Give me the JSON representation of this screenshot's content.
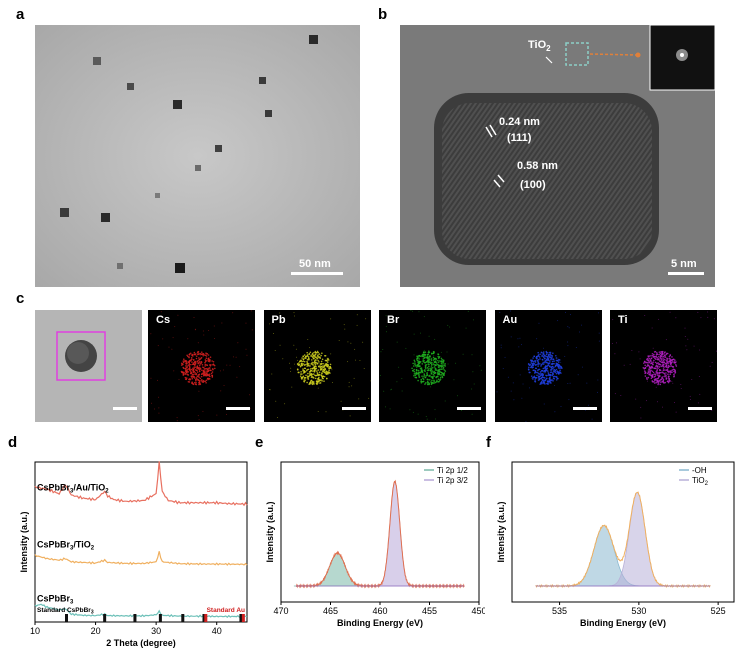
{
  "panels": {
    "a": {
      "label": "a",
      "scale": "50 nm"
    },
    "b": {
      "label": "b",
      "scale": "5 nm",
      "tio2": "TiO",
      "tio2_sub": "2",
      "d1": "0.24 nm",
      "hkl1": "(111)",
      "d2": "0.58 nm",
      "hkl2": "(100)"
    },
    "c": {
      "label": "c",
      "maps": [
        {
          "name": "Cs",
          "color": "#d42020"
        },
        {
          "name": "Pb",
          "color": "#cfd020"
        },
        {
          "name": "Br",
          "color": "#20b020"
        },
        {
          "name": "Au",
          "color": "#2040e0"
        },
        {
          "name": "Ti",
          "color": "#b020c0"
        }
      ]
    },
    "d": {
      "label": "d"
    },
    "e": {
      "label": "e"
    },
    "f": {
      "label": "f"
    }
  },
  "chart_data": [
    {
      "panel": "d",
      "type": "line",
      "xlabel": "2 Theta (degree)",
      "ylabel": "Intensity (a.u.)",
      "xlim": [
        10,
        45
      ],
      "xticks": [
        10,
        20,
        30,
        40
      ],
      "series": [
        {
          "name": "CsPbBr3/Au/TiO2",
          "color": "#e87060",
          "x": [
            10,
            12,
            14,
            15,
            15.5,
            16,
            18,
            20,
            21.5,
            22,
            23,
            25,
            28,
            30,
            30.5,
            31,
            32,
            34,
            36,
            38,
            40,
            42,
            45
          ],
          "y": [
            0.4,
            0.35,
            0.25,
            0.45,
            0.35,
            0.22,
            0.15,
            0.12,
            0.3,
            0.2,
            0.12,
            0.08,
            0.1,
            0.25,
            0.95,
            0.3,
            0.1,
            0.05,
            0.05,
            0.05,
            0.05,
            0.03,
            0.02
          ]
        },
        {
          "name": "CsPbBr3/TiO2",
          "color": "#f0b060",
          "x": [
            10,
            12,
            14,
            15,
            15.5,
            16,
            18,
            20,
            21.5,
            22,
            25,
            28,
            30,
            30.5,
            31,
            34,
            38,
            40,
            45
          ],
          "y": [
            0.3,
            0.2,
            0.15,
            0.2,
            0.15,
            0.1,
            0.08,
            0.06,
            0.15,
            0.08,
            0.05,
            0.05,
            0.1,
            0.4,
            0.1,
            0.04,
            0.03,
            0.03,
            0.02
          ]
        },
        {
          "name": "CsPbBr3",
          "color": "#6cc0b8",
          "x": [
            10,
            11,
            12,
            14,
            15,
            15.5,
            16,
            18,
            20,
            21.5,
            22,
            25,
            28,
            30,
            30.5,
            31,
            34,
            38,
            40,
            45
          ],
          "y": [
            0.4,
            0.45,
            0.35,
            0.25,
            0.3,
            0.2,
            0.1,
            0.06,
            0.05,
            0.1,
            0.05,
            0.04,
            0.04,
            0.08,
            0.2,
            0.06,
            0.03,
            0.03,
            0.02,
            0.02
          ]
        }
      ],
      "series_labels": [
        {
          "main": "CsPbBr",
          "sub": "3",
          "rest": "/Au/TiO",
          "sub2": "2"
        },
        {
          "main": "CsPbBr",
          "sub": "3",
          "rest": "/TiO",
          "sub2": "2"
        },
        {
          "main": "CsPbBr",
          "sub": "3",
          "rest": "",
          "sub2": ""
        }
      ],
      "standard_labels": {
        "csPbBr": "Standard CsPbBr",
        "csPbBr_sub": "3",
        "au": "Standard Au"
      },
      "standard_cspbbr3": [
        15.2,
        21.5,
        26.5,
        30.7,
        34.4,
        37.9,
        44.0
      ],
      "standard_au": [
        38.2,
        44.4
      ]
    },
    {
      "panel": "e",
      "type": "area",
      "xlabel": "Binding Energy (eV)",
      "ylabel": "Intensity (a.u.)",
      "xlim": [
        470,
        450
      ],
      "xticks": [
        470,
        465,
        460,
        455,
        450
      ],
      "legend": [
        "Ti 2p 1/2",
        "Ti 2p 3/2"
      ],
      "series": [
        {
          "name": "Ti 2p 1/2",
          "color": "#7ab8a8",
          "center": 464.3,
          "height": 0.3,
          "width": 1.1
        },
        {
          "name": "Ti 2p 3/2",
          "color": "#b8a8d8",
          "center": 458.5,
          "height": 0.95,
          "width": 0.7
        }
      ],
      "envelope_color": "#e07050"
    },
    {
      "panel": "f",
      "type": "area",
      "xlabel": "Binding Energy (eV)",
      "ylabel": "Intensity (a.u.)",
      "xlim": [
        538,
        524
      ],
      "xticks": [
        535,
        530,
        525
      ],
      "legend": [
        "-OH",
        "TiO2"
      ],
      "legend_labels": [
        {
          "main": "-OH",
          "sub": ""
        },
        {
          "main": "TiO",
          "sub": "2"
        }
      ],
      "series": [
        {
          "name": "-OH",
          "color": "#8ab8d0",
          "center": 532.2,
          "height": 0.55,
          "width": 0.9
        },
        {
          "name": "TiO2",
          "color": "#b8b0d8",
          "center": 530.1,
          "height": 0.85,
          "width": 0.7
        }
      ],
      "envelope_color": "#f0b060"
    }
  ]
}
